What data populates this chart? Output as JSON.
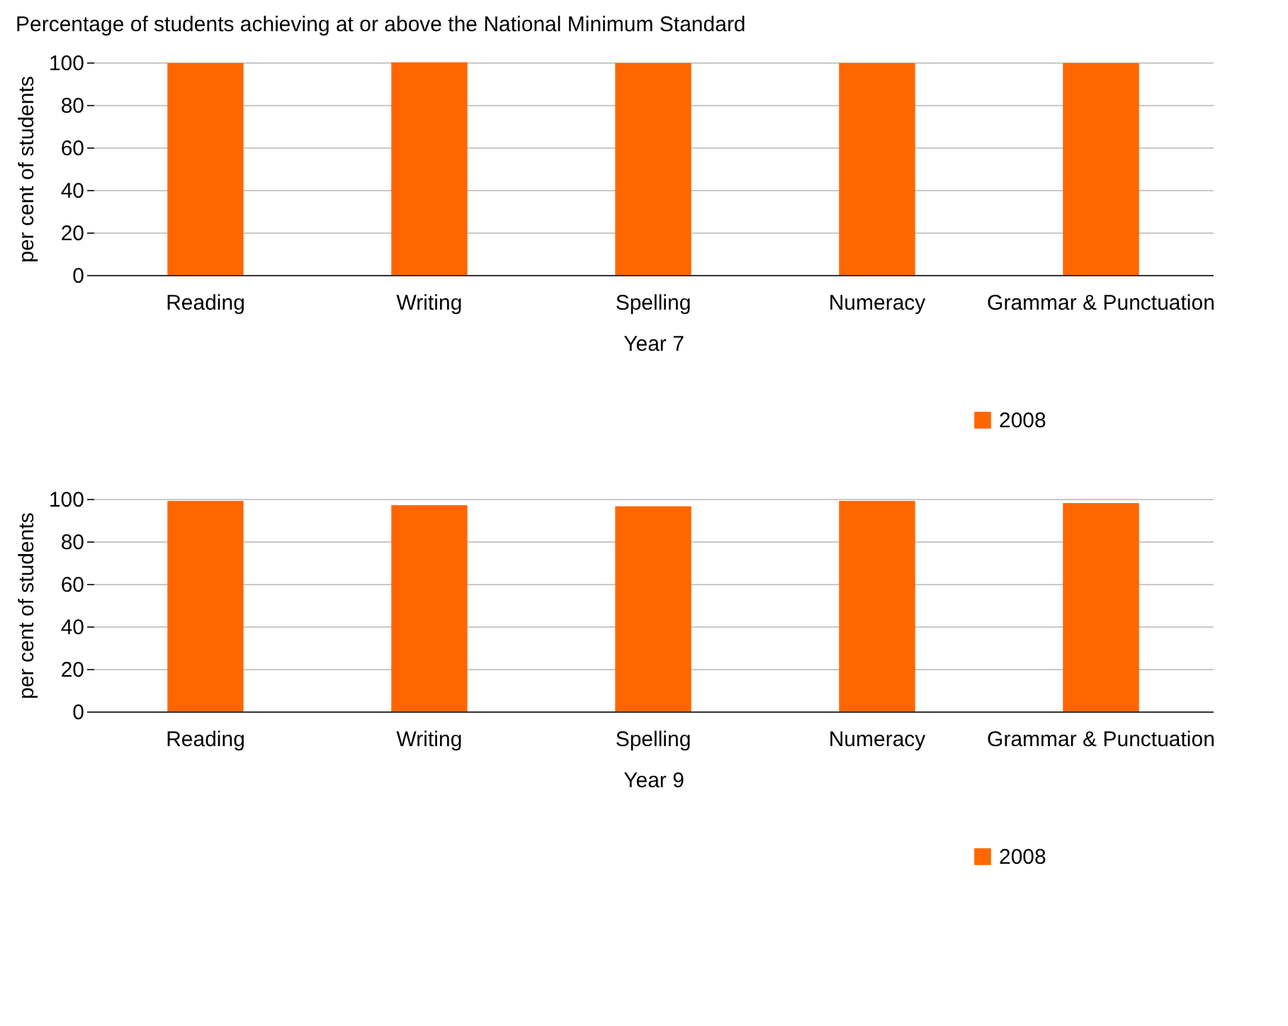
{
  "chart_data": [
    {
      "type": "bar",
      "title": "Percentage of students achieving at or above the National Minimum Standard",
      "xlabel": "Year 7",
      "ylabel": "per cent of students",
      "categories": [
        "Reading",
        "Writing",
        "Spelling",
        "Numeracy",
        "Grammar & Punctuation"
      ],
      "series": [
        {
          "name": "2008",
          "color": "#ff6600",
          "values": [
            99.7,
            100,
            99.7,
            99.7,
            99.7
          ]
        }
      ],
      "ylim": [
        0,
        100
      ],
      "yticks": [
        0,
        20,
        40,
        60,
        80,
        100
      ],
      "grid": "y",
      "legend": "bottom right"
    },
    {
      "type": "bar",
      "xlabel": "Year 9",
      "ylabel": "per cent of students",
      "categories": [
        "Reading",
        "Writing",
        "Spelling",
        "Numeracy",
        "Grammar & Punctuation"
      ],
      "series": [
        {
          "name": "2008",
          "color": "#ff6600",
          "values": [
            99,
            97,
            96.5,
            99,
            98
          ]
        }
      ],
      "ylim": [
        0,
        100
      ],
      "yticks": [
        0,
        20,
        40,
        60,
        80,
        100
      ],
      "grid": "y",
      "legend": "bottom right"
    }
  ]
}
